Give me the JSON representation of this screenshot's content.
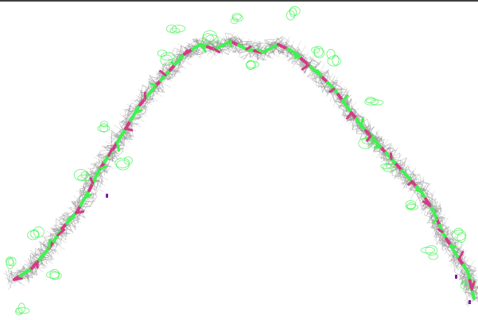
{
  "viewer": {
    "background_color": "#ffffff",
    "frame_line_color": "#000000",
    "mesh_color": "#8a8a8a",
    "residue_colors": [
      "#3ff24f",
      "#d43a86"
    ],
    "highlight_color": "#7a1fa0"
  }
}
